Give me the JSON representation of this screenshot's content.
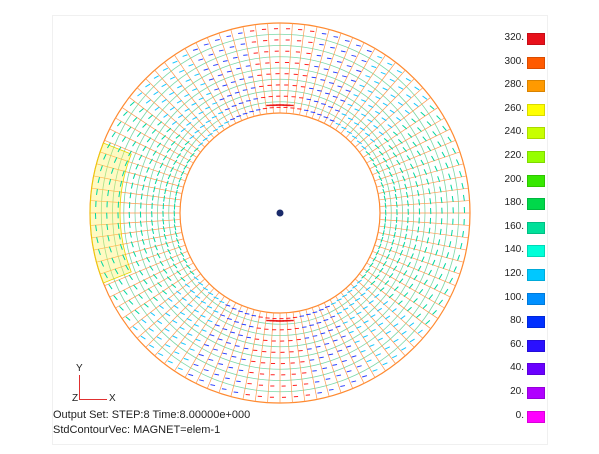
{
  "plot": {
    "center_marker_color": "#1a2a6a",
    "mesh_line_color": "#ff8a30"
  },
  "legend": {
    "labels": [
      "320.",
      "300.",
      "280.",
      "260.",
      "240.",
      "220.",
      "200.",
      "180.",
      "160.",
      "140.",
      "120.",
      "100.",
      "80.",
      "60.",
      "40.",
      "20.",
      "0."
    ],
    "colors": [
      "#e8101a",
      "#ff5a00",
      "#ff9a00",
      "#ffff00",
      "#c8ff00",
      "#96ff00",
      "#37e800",
      "#00d84a",
      "#00e09a",
      "#00ffd8",
      "#00c8ff",
      "#0090ff",
      "#0030ff",
      "#2a10ff",
      "#6a00ff",
      "#b000ff",
      "#ff00ff"
    ]
  },
  "triad": {
    "y": "Y",
    "z": "Z",
    "x": "X"
  },
  "footer": {
    "line1": "Output Set: STEP:8 Time:8.00000e+000",
    "line2": "StdContourVec: MAGNET=elem-1"
  }
}
